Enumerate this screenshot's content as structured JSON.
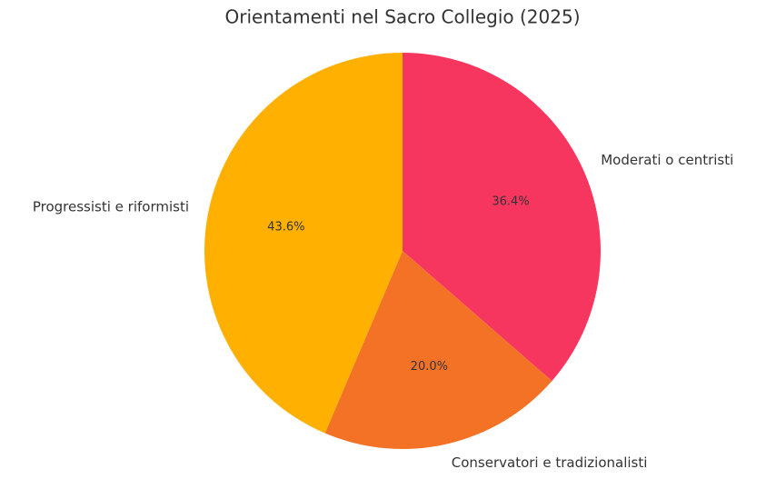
{
  "chart_data": {
    "type": "pie",
    "title": "Orientamenti nel Sacro Collegio (2025)",
    "categories": [
      "Moderati o centristi",
      "Conservatori e tradizionalisti",
      "Progressisti e riformisti"
    ],
    "values": [
      36.4,
      20.0,
      43.6
    ],
    "value_labels": [
      "36.4%",
      "20.0%",
      "43.6%"
    ],
    "colors": [
      "#f7365f",
      "#f47226",
      "#ffb000"
    ]
  }
}
